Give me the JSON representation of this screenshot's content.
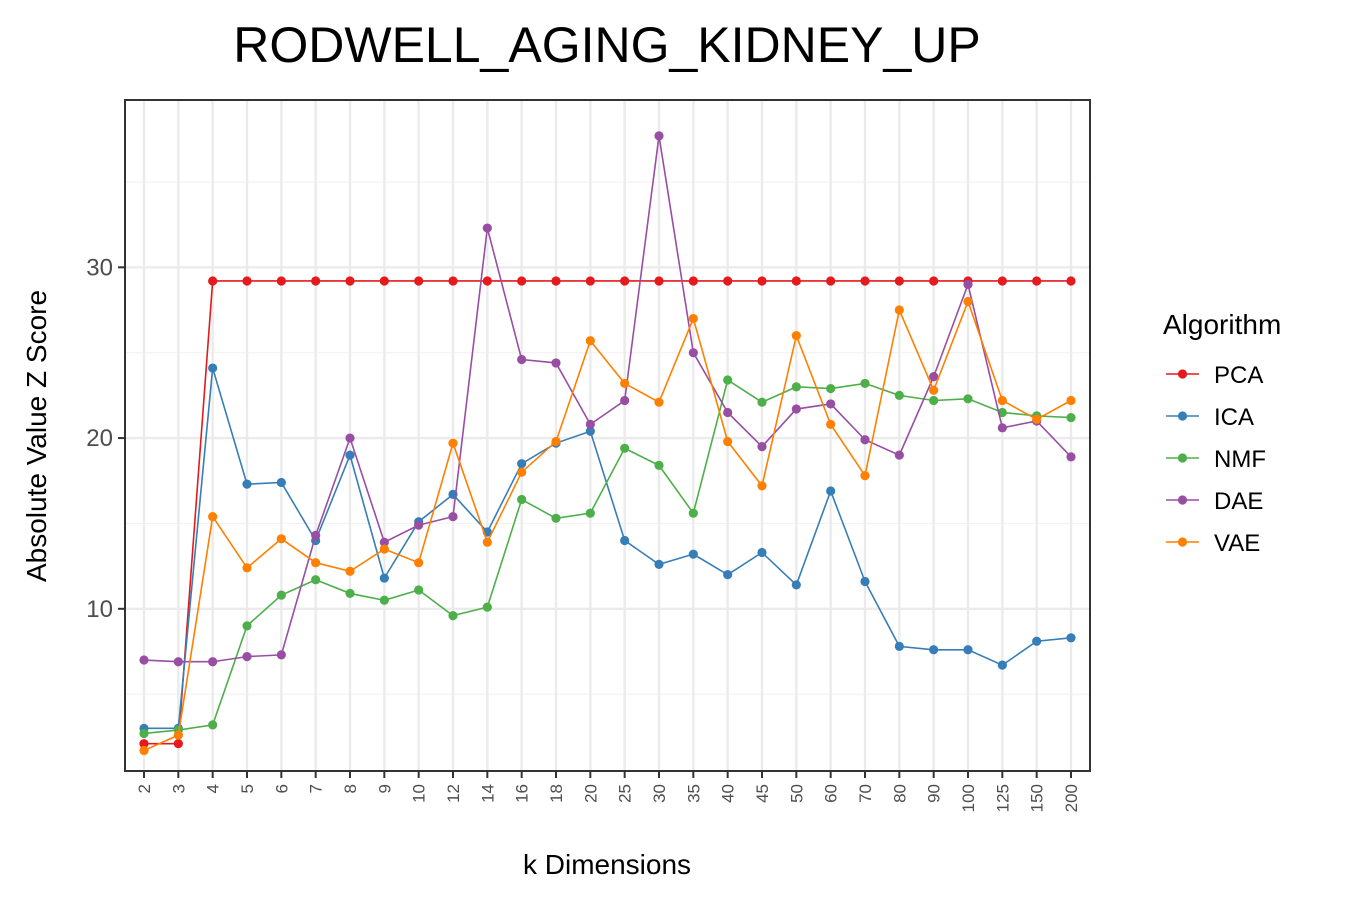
{
  "chart_data": {
    "type": "line",
    "title": "RODWELL_AGING_KIDNEY_UP",
    "xlabel": "k Dimensions",
    "ylabel": "Absolute Value Z Score",
    "categories": [
      "2",
      "3",
      "4",
      "5",
      "6",
      "7",
      "8",
      "9",
      "10",
      "12",
      "14",
      "16",
      "18",
      "20",
      "25",
      "30",
      "35",
      "40",
      "45",
      "50",
      "60",
      "70",
      "80",
      "90",
      "100",
      "125",
      "150",
      "200"
    ],
    "ylim": [
      0.5,
      39.8
    ],
    "yticks": [
      10,
      20,
      30
    ],
    "grid": true,
    "legend": {
      "title": "Algorithm",
      "position": "right"
    },
    "series": [
      {
        "name": "PCA",
        "color": "#E41A1C",
        "values": [
          2.1,
          2.1,
          29.2,
          29.2,
          29.2,
          29.2,
          29.2,
          29.2,
          29.2,
          29.2,
          29.2,
          29.2,
          29.2,
          29.2,
          29.2,
          29.2,
          29.2,
          29.2,
          29.2,
          29.2,
          29.2,
          29.2,
          29.2,
          29.2,
          29.2,
          29.2,
          29.2,
          29.2
        ]
      },
      {
        "name": "ICA",
        "color": "#377EB8",
        "values": [
          3.0,
          3.0,
          24.1,
          17.3,
          17.4,
          14.0,
          19.0,
          11.8,
          15.1,
          16.7,
          14.5,
          18.5,
          19.7,
          20.4,
          14.0,
          12.6,
          13.2,
          12.0,
          13.3,
          11.4,
          16.9,
          11.6,
          7.8,
          7.6,
          7.6,
          6.7,
          8.1,
          8.3
        ]
      },
      {
        "name": "NMF",
        "color": "#4DAF4A",
        "values": [
          2.7,
          2.9,
          3.2,
          9.0,
          10.8,
          11.7,
          10.9,
          10.5,
          11.1,
          9.6,
          10.1,
          16.4,
          15.3,
          15.6,
          19.4,
          18.4,
          15.6,
          23.4,
          22.1,
          23.0,
          22.9,
          23.2,
          22.5,
          22.2,
          22.3,
          21.5,
          21.3,
          21.2
        ]
      },
      {
        "name": "DAE",
        "color": "#984EA3",
        "values": [
          7.0,
          6.9,
          6.9,
          7.2,
          7.3,
          14.3,
          20.0,
          13.9,
          14.9,
          15.4,
          32.3,
          24.6,
          24.4,
          20.8,
          22.2,
          37.7,
          25.0,
          21.5,
          19.5,
          21.7,
          22.0,
          19.9,
          19.0,
          23.6,
          29.0,
          20.6,
          21.0,
          18.9
        ]
      },
      {
        "name": "VAE",
        "color": "#FF7F00",
        "values": [
          1.7,
          2.6,
          15.4,
          12.4,
          14.1,
          12.7,
          12.2,
          13.5,
          12.7,
          19.7,
          13.9,
          18.0,
          19.8,
          25.7,
          23.2,
          22.1,
          27.0,
          19.8,
          17.2,
          26.0,
          20.8,
          17.8,
          27.5,
          22.8,
          28.0,
          22.2,
          21.1,
          22.2
        ]
      }
    ]
  }
}
